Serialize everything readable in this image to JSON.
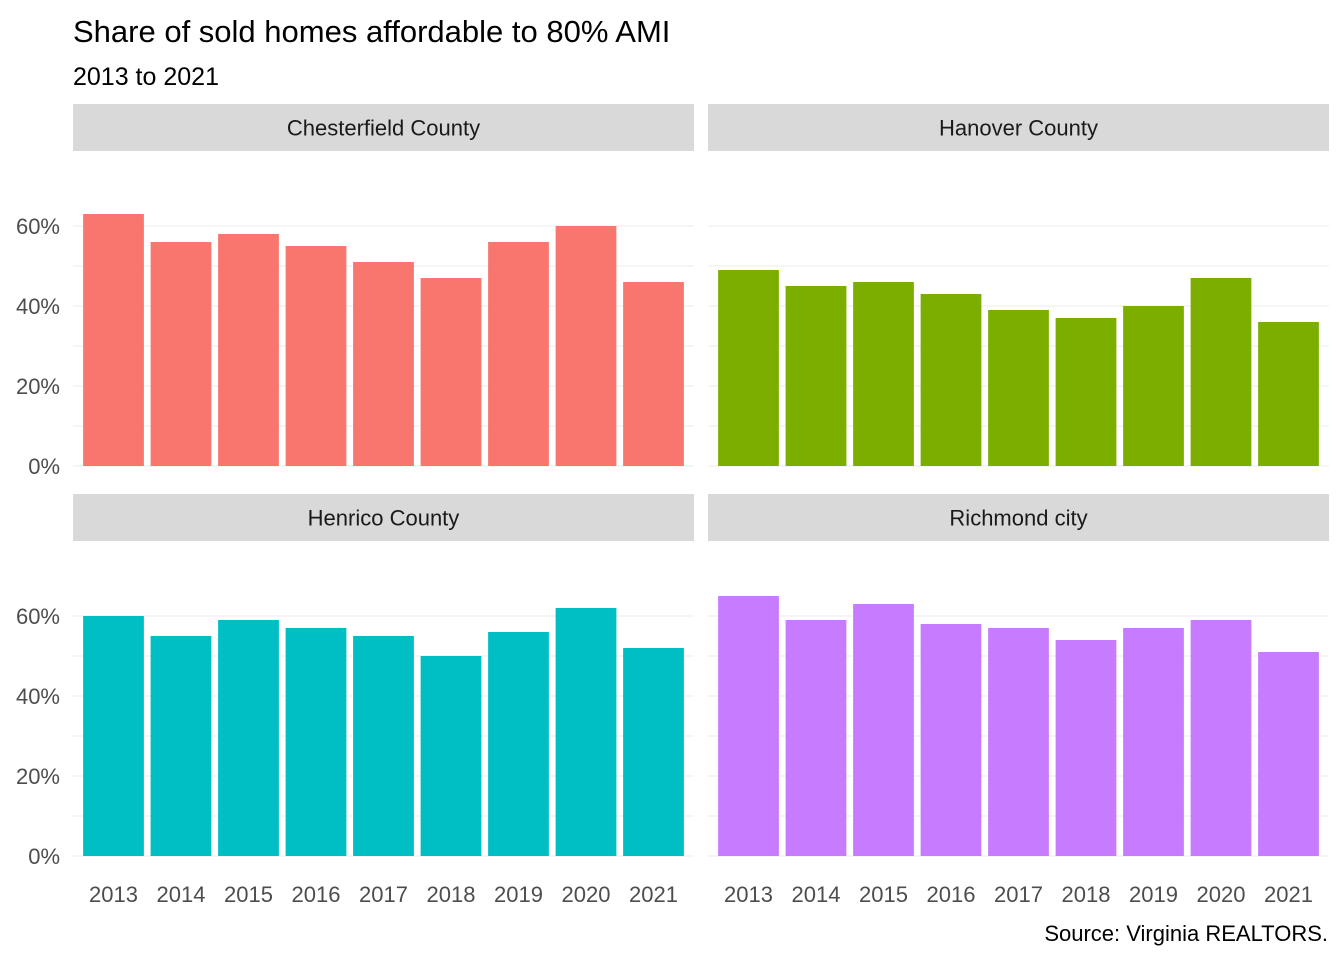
{
  "chart_data": {
    "type": "bar",
    "title": "Share of sold homes affordable to 80% AMI",
    "subtitle": "2013 to 2021",
    "caption": "Source: Virginia REALTORS.",
    "xlabel": "",
    "ylabel": "",
    "ylim": [
      0,
      0.7
    ],
    "y_ticks": [
      0,
      0.2,
      0.4,
      0.6
    ],
    "y_tick_labels": [
      "0%",
      "20%",
      "40%",
      "60%"
    ],
    "categories": [
      "2013",
      "2014",
      "2015",
      "2016",
      "2017",
      "2018",
      "2019",
      "2020",
      "2021"
    ],
    "facet_layout": "2x2",
    "grid": true,
    "legend": "none",
    "panels": [
      {
        "name": "Chesterfield County",
        "color": "#F8766D",
        "values": [
          0.63,
          0.56,
          0.58,
          0.55,
          0.51,
          0.47,
          0.56,
          0.6,
          0.46
        ]
      },
      {
        "name": "Hanover County",
        "color": "#7CAE00",
        "values": [
          0.49,
          0.45,
          0.46,
          0.43,
          0.39,
          0.37,
          0.4,
          0.47,
          0.36
        ]
      },
      {
        "name": "Henrico County",
        "color": "#00BFC4",
        "values": [
          0.6,
          0.55,
          0.59,
          0.57,
          0.55,
          0.5,
          0.56,
          0.62,
          0.52
        ]
      },
      {
        "name": "Richmond city",
        "color": "#C77CFF",
        "values": [
          0.65,
          0.59,
          0.63,
          0.58,
          0.57,
          0.54,
          0.57,
          0.59,
          0.51
        ]
      }
    ]
  }
}
